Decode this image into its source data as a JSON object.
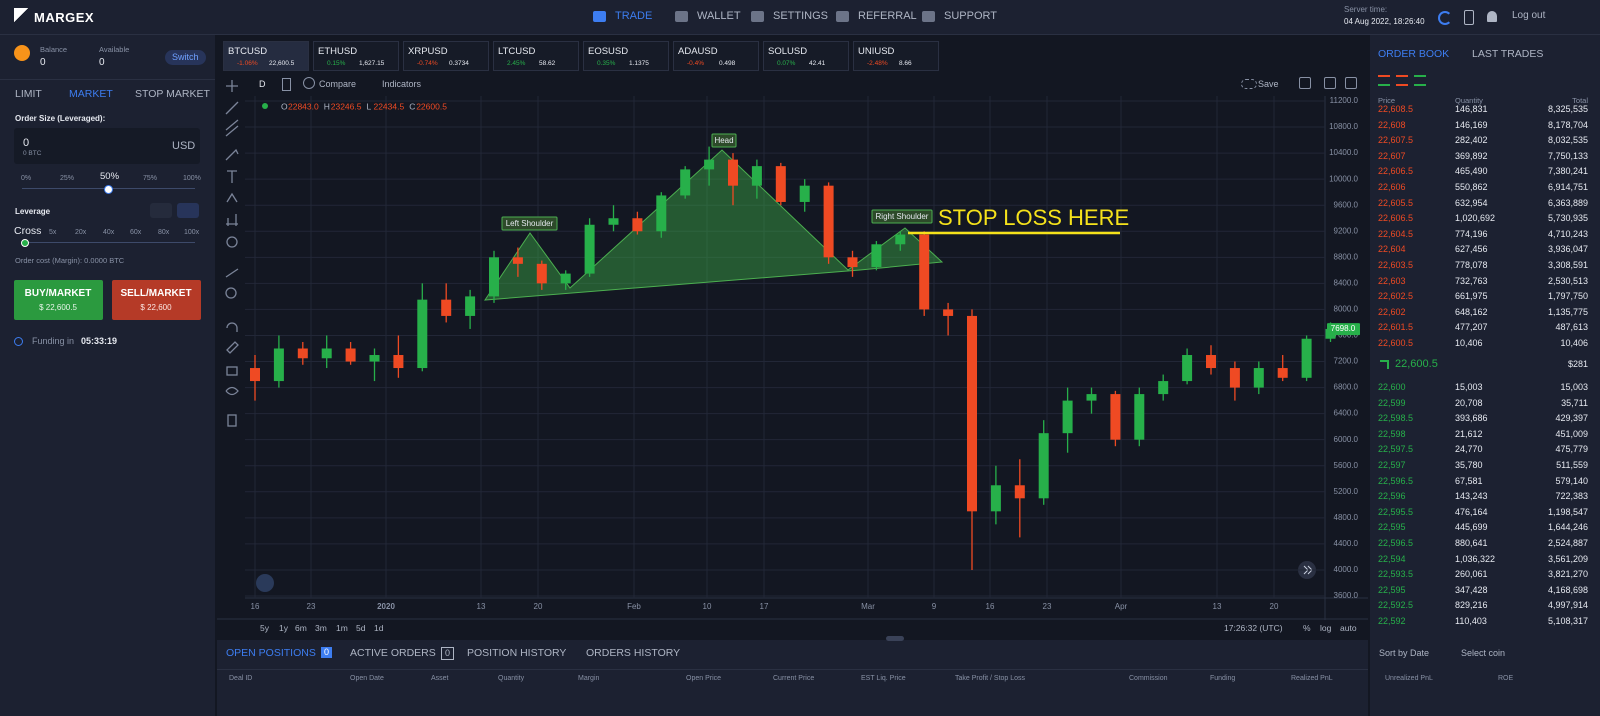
{
  "nav": {
    "brand": "MARGEX",
    "items": [
      "TRADE",
      "WALLET",
      "SETTINGS",
      "REFERRAL",
      "SUPPORT"
    ],
    "server_time_label": "Server time:",
    "server_time": "04 Aug 2022, 18:26:40",
    "logout": "Log out"
  },
  "account": {
    "balance_label": "Balance",
    "balance": "0",
    "available_label": "Available",
    "available": "0",
    "switch": "Switch"
  },
  "order_form": {
    "tabs": [
      "LIMIT",
      "MARKET",
      "STOP MARKET"
    ],
    "size_label": "Order Size (Leveraged):",
    "size_value": "0",
    "size_sub": "0 BTC",
    "currency": "USD",
    "size_steps": [
      "0%",
      "25%",
      "50%",
      "75%",
      "100%"
    ],
    "leverage_label": "Leverage",
    "cross": "Cross",
    "leverage_steps": [
      "5x",
      "20x",
      "40x",
      "60x",
      "80x",
      "100x"
    ],
    "order_cost": "Order cost (Margin): 0.0000 BTC",
    "buy": "BUY/MARKET",
    "buy_price": "$ 22,600.5",
    "sell": "SELL/MARKET",
    "sell_price": "$ 22,600",
    "funding_label": "Funding in",
    "funding_time": "05:33:19"
  },
  "tickers": [
    {
      "symbol": "BTCUSD",
      "change": "-1.06%",
      "price": "22,600.5"
    },
    {
      "symbol": "ETHUSD",
      "change": "0.15%",
      "price": "1,627.15"
    },
    {
      "symbol": "XRPUSD",
      "change": "-0.74%",
      "price": "0.3734"
    },
    {
      "symbol": "LTCUSD",
      "change": "2.45%",
      "price": "58.62"
    },
    {
      "symbol": "EOSUSD",
      "change": "0.35%",
      "price": "1.1375"
    },
    {
      "symbol": "ADAUSD",
      "change": "-0.4%",
      "price": "0.498"
    },
    {
      "symbol": "SOLUSD",
      "change": "0.07%",
      "price": "42.41"
    },
    {
      "symbol": "UNIUSD",
      "change": "-2.48%",
      "price": "8.66"
    }
  ],
  "toolbar": {
    "interval": "D",
    "compare": "Compare",
    "indicators": "Indicators",
    "save": "Save"
  },
  "chart": {
    "legend": [
      {
        "k": "O",
        "v": "22843.0"
      },
      {
        "k": "H",
        "v": "23246.5"
      },
      {
        "k": "L",
        "v": "22434.5"
      },
      {
        "k": "C",
        "v": "22600.5"
      }
    ],
    "annotations": {
      "left_shoulder": "Left Shoulder",
      "head": "Head",
      "right_shoulder": "Right Shoulder",
      "stop_loss": "STOP LOSS HERE"
    },
    "ylim": [
      3600,
      11200
    ],
    "yticks": [
      {
        "value": 11200,
        "label": "11200.0"
      },
      {
        "value": 10800,
        "label": "10800.0"
      },
      {
        "value": 10400,
        "label": "10400.0"
      },
      {
        "value": 10000,
        "label": "10000.0"
      },
      {
        "value": 9600,
        "label": "9600.0"
      },
      {
        "value": 9200,
        "label": "9200.0"
      },
      {
        "value": 8800,
        "label": "8800.0"
      },
      {
        "value": 8400,
        "label": "8400.0"
      },
      {
        "value": 8000,
        "label": "8000.0"
      },
      {
        "value": 7600,
        "label": "7600.0"
      },
      {
        "value": 7200,
        "label": "7200.0"
      },
      {
        "value": 6800,
        "label": "6800.0"
      },
      {
        "value": 6400,
        "label": "6400.0"
      },
      {
        "value": 6000,
        "label": "6000.0"
      },
      {
        "value": 5600,
        "label": "5600.0"
      },
      {
        "value": 5200,
        "label": "5200.0"
      },
      {
        "value": 4800,
        "label": "4800.0"
      },
      {
        "value": 4400,
        "label": "4400.0"
      },
      {
        "value": 4000,
        "label": "4000.0"
      },
      {
        "value": 3600,
        "label": "3600.0"
      }
    ],
    "current_price": {
      "value": 7698,
      "label": "7698.0"
    },
    "x_labels": [
      "16",
      "23",
      "2020",
      "13",
      "20",
      "Feb",
      "10",
      "17",
      "Mar",
      "9",
      "16",
      "23",
      "Apr",
      "13",
      "20"
    ],
    "candles": [
      [
        7100,
        7300,
        6600,
        6900
      ],
      [
        6900,
        7600,
        6800,
        7400
      ],
      [
        7400,
        7500,
        7150,
        7250
      ],
      [
        7250,
        7600,
        7100,
        7400
      ],
      [
        7400,
        7500,
        7150,
        7200
      ],
      [
        7200,
        7400,
        6900,
        7300
      ],
      [
        7300,
        7600,
        6950,
        7100
      ],
      [
        7100,
        8400,
        7050,
        8150
      ],
      [
        8150,
        8400,
        7800,
        7900
      ],
      [
        7900,
        8300,
        7700,
        8200
      ],
      [
        8200,
        8900,
        8100,
        8800
      ],
      [
        8800,
        8950,
        8500,
        8700
      ],
      [
        8700,
        8750,
        8300,
        8400
      ],
      [
        8400,
        8600,
        8300,
        8550
      ],
      [
        8550,
        9400,
        8500,
        9300
      ],
      [
        9300,
        9600,
        9200,
        9400
      ],
      [
        9400,
        9500,
        9150,
        9200
      ],
      [
        9200,
        9800,
        9100,
        9750
      ],
      [
        9750,
        10200,
        9700,
        10150
      ],
      [
        10150,
        10500,
        9900,
        10300
      ],
      [
        10300,
        10400,
        9600,
        9900
      ],
      [
        9900,
        10300,
        9700,
        10200
      ],
      [
        10200,
        10250,
        9600,
        9650
      ],
      [
        9650,
        10000,
        9500,
        9900
      ],
      [
        9900,
        9950,
        8700,
        8800
      ],
      [
        8800,
        8900,
        8500,
        8650
      ],
      [
        8650,
        9050,
        8600,
        9000
      ],
      [
        9000,
        9200,
        8900,
        9150
      ],
      [
        9150,
        9200,
        7900,
        8000
      ],
      [
        8000,
        8100,
        7600,
        7900
      ],
      [
        7900,
        8000,
        4000,
        4900
      ],
      [
        4900,
        5600,
        4700,
        5300
      ],
      [
        5300,
        5700,
        4500,
        5100
      ],
      [
        5100,
        6300,
        5000,
        6100
      ],
      [
        6100,
        6800,
        5800,
        6600
      ],
      [
        6600,
        6800,
        6400,
        6700
      ],
      [
        6700,
        6750,
        5900,
        6000
      ],
      [
        6000,
        6800,
        5900,
        6700
      ],
      [
        6700,
        7000,
        6600,
        6900
      ],
      [
        6900,
        7400,
        6850,
        7300
      ],
      [
        7300,
        7450,
        7000,
        7100
      ],
      [
        7100,
        7200,
        6600,
        6800
      ],
      [
        6800,
        7200,
        6700,
        7100
      ],
      [
        7100,
        7300,
        6900,
        6950
      ],
      [
        6950,
        7600,
        6900,
        7550
      ],
      [
        7550,
        7800,
        7500,
        7700
      ]
    ],
    "ranges": [
      "5y",
      "1y",
      "6m",
      "3m",
      "1m",
      "5d",
      "1d"
    ],
    "clock": "17:26:32 (UTC)",
    "scale_modes": [
      "%",
      "log",
      "auto"
    ]
  },
  "order_book": {
    "tabs": [
      "ORDER BOOK",
      "LAST TRADES"
    ],
    "columns": [
      "Price",
      "Quantity",
      "Total"
    ],
    "asks": [
      [
        "22,608.5",
        "146,831",
        "8,325,535"
      ],
      [
        "22,608",
        "146,169",
        "8,178,704"
      ],
      [
        "22,607.5",
        "282,402",
        "8,032,535"
      ],
      [
        "22,607",
        "369,892",
        "7,750,133"
      ],
      [
        "22,606.5",
        "465,490",
        "7,380,241"
      ],
      [
        "22,606",
        "550,862",
        "6,914,751"
      ],
      [
        "22,605.5",
        "632,954",
        "6,363,889"
      ],
      [
        "22,606.5",
        "1,020,692",
        "5,730,935"
      ],
      [
        "22,604.5",
        "774,196",
        "4,710,243"
      ],
      [
        "22,604",
        "627,456",
        "3,936,047"
      ],
      [
        "22,603.5",
        "778,078",
        "3,308,591"
      ],
      [
        "22,603",
        "732,763",
        "2,530,513"
      ],
      [
        "22,602.5",
        "661,975",
        "1,797,750"
      ],
      [
        "22,602",
        "648,162",
        "1,135,775"
      ],
      [
        "22,601.5",
        "477,207",
        "487,613"
      ],
      [
        "22,600.5",
        "10,406",
        "10,406"
      ]
    ],
    "mid_price": "22,600.5",
    "mid_value": "$281",
    "bids": [
      [
        "22,600",
        "15,003",
        "15,003"
      ],
      [
        "22,599",
        "20,708",
        "35,711"
      ],
      [
        "22,598.5",
        "393,686",
        "429,397"
      ],
      [
        "22,598",
        "21,612",
        "451,009"
      ],
      [
        "22,597.5",
        "24,770",
        "475,779"
      ],
      [
        "22,597",
        "35,780",
        "511,559"
      ],
      [
        "22,596.5",
        "67,581",
        "579,140"
      ],
      [
        "22,596",
        "143,243",
        "722,383"
      ],
      [
        "22,595.5",
        "476,164",
        "1,198,547"
      ],
      [
        "22,595",
        "445,699",
        "1,644,246"
      ],
      [
        "22,596.5",
        "880,641",
        "2,524,887"
      ],
      [
        "22,594",
        "1,036,322",
        "3,561,209"
      ],
      [
        "22,593.5",
        "260,061",
        "3,821,270"
      ],
      [
        "22,595",
        "347,428",
        "4,168,698"
      ],
      [
        "22,592.5",
        "829,216",
        "4,997,914"
      ],
      [
        "22,592",
        "110,403",
        "5,108,317"
      ]
    ]
  },
  "positions": {
    "tabs": [
      {
        "label": "OPEN POSITIONS",
        "count": "0"
      },
      {
        "label": "ACTIVE ORDERS",
        "count": "0"
      },
      {
        "label": "POSITION HISTORY"
      },
      {
        "label": "ORDERS HISTORY"
      }
    ],
    "sort": "Sort by Date",
    "coin": "Select coin",
    "columns": [
      "Deal ID",
      "Open Date",
      "Asset",
      "Quantity",
      "Margin",
      "Open Price",
      "Current Price",
      "EST Liq. Price",
      "Take Profit / Stop Loss",
      "Commission",
      "Funding",
      "Realized PnL",
      "Unrealized PnL",
      "ROE"
    ]
  }
}
